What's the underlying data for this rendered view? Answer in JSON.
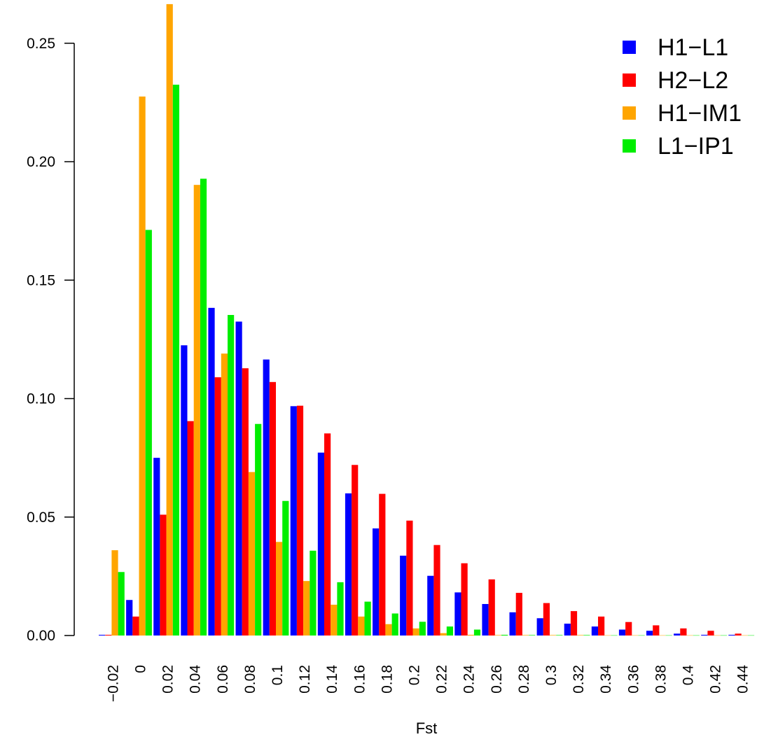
{
  "chart_data": {
    "type": "bar",
    "xlabel": "Fst",
    "ylabel": "",
    "ylim": [
      0,
      0.27
    ],
    "yticks": [
      "0.00",
      "0.05",
      "0.10",
      "0.15",
      "0.20",
      "0.25"
    ],
    "ytick_values": [
      0,
      0.05,
      0.1,
      0.15,
      0.2,
      0.25
    ],
    "categories": [
      "-0.02",
      "0",
      "0.02",
      "0.04",
      "0.06",
      "0.08",
      "0.1",
      "0.12",
      "0.14",
      "0.16",
      "0.18",
      "0.2",
      "0.22",
      "0.24",
      "0.26",
      "0.28",
      "0.3",
      "0.32",
      "0.34",
      "0.36",
      "0.38",
      "0.4",
      "0.42",
      "0.44"
    ],
    "legend_position": "top-right",
    "grid": false,
    "series": [
      {
        "name": "H1−L1",
        "color": "#0000ff",
        "values": [
          0.0003,
          0.015,
          0.075,
          0.1225,
          0.1383,
          0.1325,
          0.1165,
          0.0968,
          0.0772,
          0.06,
          0.0452,
          0.0337,
          0.0252,
          0.0182,
          0.0133,
          0.0098,
          0.0073,
          0.005,
          0.0038,
          0.0025,
          0.002,
          0.0008,
          0.0003,
          0.0003
        ]
      },
      {
        "name": "H2−L2",
        "color": "#ff0000",
        "values": [
          0.0003,
          0.008,
          0.051,
          0.0905,
          0.109,
          0.1128,
          0.107,
          0.097,
          0.0853,
          0.072,
          0.0598,
          0.0485,
          0.0382,
          0.0305,
          0.0237,
          0.018,
          0.0137,
          0.0103,
          0.008,
          0.0057,
          0.0043,
          0.003,
          0.002,
          0.0008
        ]
      },
      {
        "name": "H1−IM1",
        "color": "#ffa500",
        "values": [
          0.036,
          0.2275,
          0.2665,
          0.1902,
          0.119,
          0.069,
          0.0395,
          0.023,
          0.013,
          0.008,
          0.0048,
          0.003,
          0.001,
          0.0003,
          0.0002,
          0.0002,
          0.0002,
          0.0002,
          0.0001,
          0.0001,
          0.0001,
          0.0001,
          0.0001,
          0.0001
        ]
      },
      {
        "name": "L1−IP1",
        "color": "#00ee00",
        "values": [
          0.0268,
          0.1712,
          0.2325,
          0.1928,
          0.1353,
          0.0893,
          0.0568,
          0.0358,
          0.0225,
          0.0143,
          0.0093,
          0.0058,
          0.0038,
          0.0025,
          0.0003,
          0.0002,
          0.0002,
          0.0002,
          0.0001,
          0.0001,
          0.0001,
          0.0001,
          0.0001,
          0.0001
        ]
      }
    ]
  }
}
